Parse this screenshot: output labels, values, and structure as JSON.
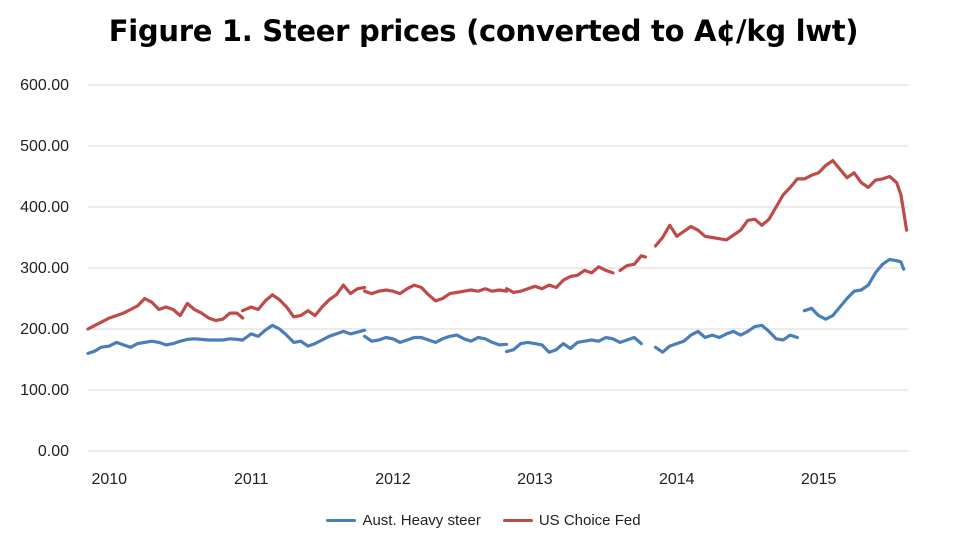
{
  "chart_data": {
    "type": "line",
    "title": "Figure 1. Steer prices (converted to A¢/kg lwt)",
    "xlabel": "",
    "ylabel": "",
    "ylim": [
      0,
      600
    ],
    "y_ticks": [
      "0.00",
      "100.00",
      "200.00",
      "300.00",
      "400.00",
      "500.00",
      "600.00"
    ],
    "x_ticks": [
      "2010",
      "2011",
      "2012",
      "2013",
      "2014",
      "2015"
    ],
    "x_unit": "year (decimal)",
    "xlim": [
      2009.85,
      2015.63
    ],
    "grid": "horizontal",
    "legend_position": "bottom",
    "series": [
      {
        "name": "Aust. Heavy steer",
        "color": "#4a7ebb",
        "segments": [
          [
            [
              2009.85,
              160
            ],
            [
              2009.9,
              164
            ],
            [
              2009.94,
              170
            ],
            [
              2010.0,
              172
            ],
            [
              2010.05,
              178
            ],
            [
              2010.1,
              174
            ],
            [
              2010.15,
              170
            ],
            [
              2010.2,
              176
            ],
            [
              2010.25,
              178
            ],
            [
              2010.3,
              180
            ],
            [
              2010.35,
              178
            ],
            [
              2010.4,
              174
            ],
            [
              2010.45,
              176
            ],
            [
              2010.5,
              180
            ],
            [
              2010.55,
              183
            ],
            [
              2010.6,
              184
            ],
            [
              2010.65,
              183
            ],
            [
              2010.7,
              182
            ],
            [
              2010.75,
              182
            ],
            [
              2010.8,
              182
            ],
            [
              2010.85,
              184
            ],
            [
              2010.9,
              183
            ],
            [
              2010.94,
              182
            ]
          ],
          [
            [
              2010.94,
              182
            ],
            [
              2011.0,
              192
            ],
            [
              2011.05,
              188
            ],
            [
              2011.1,
              198
            ],
            [
              2011.15,
              206
            ],
            [
              2011.2,
              200
            ],
            [
              2011.25,
              190
            ],
            [
              2011.3,
              178
            ],
            [
              2011.35,
              180
            ],
            [
              2011.4,
              172
            ],
            [
              2011.45,
              176
            ],
            [
              2011.5,
              182
            ],
            [
              2011.55,
              188
            ],
            [
              2011.6,
              192
            ],
            [
              2011.65,
              196
            ],
            [
              2011.7,
              192
            ],
            [
              2011.75,
              195
            ],
            [
              2011.8,
              198
            ]
          ],
          [
            [
              2011.8,
              188
            ],
            [
              2011.85,
              180
            ],
            [
              2011.9,
              182
            ],
            [
              2011.95,
              186
            ],
            [
              2012.0,
              184
            ],
            [
              2012.05,
              178
            ],
            [
              2012.1,
              182
            ],
            [
              2012.15,
              186
            ],
            [
              2012.2,
              186
            ],
            [
              2012.25,
              182
            ],
            [
              2012.3,
              178
            ],
            [
              2012.35,
              184
            ],
            [
              2012.4,
              188
            ],
            [
              2012.45,
              190
            ],
            [
              2012.5,
              184
            ],
            [
              2012.55,
              180
            ],
            [
              2012.6,
              186
            ],
            [
              2012.65,
              184
            ],
            [
              2012.7,
              178
            ],
            [
              2012.75,
              174
            ],
            [
              2012.8,
              175
            ]
          ],
          [
            [
              2012.8,
              163
            ],
            [
              2012.85,
              166
            ],
            [
              2012.9,
              176
            ],
            [
              2012.95,
              178
            ],
            [
              2013.0,
              176
            ],
            [
              2013.05,
              174
            ],
            [
              2013.1,
              162
            ],
            [
              2013.15,
              166
            ],
            [
              2013.2,
              176
            ],
            [
              2013.25,
              168
            ],
            [
              2013.3,
              178
            ],
            [
              2013.35,
              180
            ],
            [
              2013.4,
              182
            ],
            [
              2013.45,
              180
            ],
            [
              2013.5,
              186
            ],
            [
              2013.55,
              184
            ],
            [
              2013.6,
              178
            ],
            [
              2013.65,
              182
            ],
            [
              2013.7,
              186
            ],
            [
              2013.75,
              176
            ]
          ],
          [
            [
              2013.85,
              170
            ],
            [
              2013.9,
              162
            ],
            [
              2013.95,
              172
            ],
            [
              2014.0,
              176
            ],
            [
              2014.05,
              180
            ],
            [
              2014.1,
              190
            ],
            [
              2014.15,
              196
            ],
            [
              2014.2,
              186
            ],
            [
              2014.25,
              190
            ],
            [
              2014.3,
              186
            ],
            [
              2014.35,
              192
            ],
            [
              2014.4,
              196
            ],
            [
              2014.45,
              190
            ],
            [
              2014.5,
              196
            ],
            [
              2014.55,
              204
            ],
            [
              2014.6,
              206
            ],
            [
              2014.65,
              196
            ],
            [
              2014.7,
              184
            ],
            [
              2014.75,
              182
            ],
            [
              2014.8,
              190
            ],
            [
              2014.85,
              186
            ]
          ],
          [
            [
              2014.9,
              230
            ],
            [
              2014.95,
              234
            ],
            [
              2015.0,
              222
            ],
            [
              2015.05,
              216
            ],
            [
              2015.1,
              222
            ],
            [
              2015.15,
              236
            ],
            [
              2015.2,
              250
            ],
            [
              2015.25,
              262
            ],
            [
              2015.3,
              264
            ],
            [
              2015.35,
              272
            ],
            [
              2015.4,
              292
            ],
            [
              2015.45,
              306
            ],
            [
              2015.5,
              314
            ],
            [
              2015.55,
              312
            ],
            [
              2015.58,
              310
            ],
            [
              2015.6,
              298
            ]
          ]
        ]
      },
      {
        "name": "US Choice Fed",
        "color": "#be4b48",
        "segments": [
          [
            [
              2009.85,
              200
            ],
            [
              2009.9,
              206
            ],
            [
              2009.95,
              212
            ],
            [
              2010.0,
              218
            ],
            [
              2010.05,
              222
            ],
            [
              2010.1,
              226
            ],
            [
              2010.15,
              232
            ],
            [
              2010.2,
              238
            ],
            [
              2010.25,
              250
            ],
            [
              2010.3,
              244
            ],
            [
              2010.35,
              232
            ],
            [
              2010.4,
              236
            ],
            [
              2010.45,
              232
            ],
            [
              2010.5,
              222
            ],
            [
              2010.55,
              242
            ],
            [
              2010.6,
              232
            ],
            [
              2010.65,
              226
            ],
            [
              2010.7,
              218
            ],
            [
              2010.75,
              214
            ],
            [
              2010.8,
              216
            ],
            [
              2010.85,
              226
            ],
            [
              2010.9,
              226
            ],
            [
              2010.94,
              218
            ]
          ],
          [
            [
              2010.94,
              230
            ],
            [
              2011.0,
              236
            ],
            [
              2011.05,
              232
            ],
            [
              2011.1,
              246
            ],
            [
              2011.15,
              256
            ],
            [
              2011.2,
              248
            ],
            [
              2011.25,
              236
            ],
            [
              2011.3,
              220
            ],
            [
              2011.35,
              222
            ],
            [
              2011.4,
              230
            ],
            [
              2011.45,
              222
            ],
            [
              2011.5,
              236
            ],
            [
              2011.55,
              248
            ],
            [
              2011.6,
              256
            ],
            [
              2011.65,
              272
            ],
            [
              2011.7,
              258
            ],
            [
              2011.75,
              266
            ],
            [
              2011.8,
              268
            ]
          ],
          [
            [
              2011.8,
              262
            ],
            [
              2011.85,
              258
            ],
            [
              2011.9,
              262
            ],
            [
              2011.95,
              264
            ],
            [
              2012.0,
              262
            ],
            [
              2012.05,
              258
            ],
            [
              2012.1,
              266
            ],
            [
              2012.15,
              272
            ],
            [
              2012.2,
              268
            ],
            [
              2012.25,
              256
            ],
            [
              2012.3,
              246
            ],
            [
              2012.35,
              250
            ],
            [
              2012.4,
              258
            ],
            [
              2012.45,
              260
            ],
            [
              2012.5,
              262
            ],
            [
              2012.55,
              264
            ],
            [
              2012.6,
              262
            ],
            [
              2012.65,
              266
            ],
            [
              2012.7,
              262
            ],
            [
              2012.75,
              264
            ],
            [
              2012.8,
              262
            ]
          ],
          [
            [
              2012.8,
              266
            ],
            [
              2012.85,
              260
            ],
            [
              2012.9,
              262
            ],
            [
              2012.95,
              266
            ],
            [
              2013.0,
              270
            ],
            [
              2013.05,
              266
            ],
            [
              2013.1,
              272
            ],
            [
              2013.15,
              268
            ],
            [
              2013.2,
              280
            ],
            [
              2013.25,
              286
            ],
            [
              2013.3,
              288
            ],
            [
              2013.35,
              296
            ],
            [
              2013.4,
              292
            ],
            [
              2013.45,
              302
            ],
            [
              2013.5,
              296
            ],
            [
              2013.55,
              292
            ]
          ],
          [
            [
              2013.6,
              296
            ],
            [
              2013.65,
              304
            ],
            [
              2013.7,
              306
            ],
            [
              2013.75,
              320
            ],
            [
              2013.78,
              318
            ]
          ],
          [
            [
              2013.85,
              336
            ],
            [
              2013.9,
              350
            ],
            [
              2013.95,
              370
            ],
            [
              2014.0,
              352
            ],
            [
              2014.05,
              360
            ],
            [
              2014.1,
              368
            ],
            [
              2014.15,
              362
            ],
            [
              2014.2,
              352
            ],
            [
              2014.25,
              350
            ],
            [
              2014.3,
              348
            ],
            [
              2014.35,
              346
            ],
            [
              2014.4,
              354
            ],
            [
              2014.45,
              362
            ],
            [
              2014.5,
              378
            ],
            [
              2014.55,
              380
            ],
            [
              2014.6,
              370
            ],
            [
              2014.65,
              380
            ],
            [
              2014.7,
              400
            ],
            [
              2014.75,
              420
            ],
            [
              2014.8,
              432
            ],
            [
              2014.85,
              446
            ],
            [
              2014.9,
              446
            ],
            [
              2014.95,
              452
            ],
            [
              2015.0,
              456
            ],
            [
              2015.05,
              468
            ],
            [
              2015.1,
              476
            ],
            [
              2015.15,
              462
            ],
            [
              2015.2,
              448
            ],
            [
              2015.25,
              456
            ],
            [
              2015.3,
              440
            ],
            [
              2015.35,
              432
            ],
            [
              2015.4,
              444
            ],
            [
              2015.45,
              446
            ],
            [
              2015.5,
              450
            ],
            [
              2015.55,
              440
            ],
            [
              2015.58,
              420
            ],
            [
              2015.6,
              392
            ],
            [
              2015.62,
              362
            ]
          ]
        ]
      }
    ]
  }
}
